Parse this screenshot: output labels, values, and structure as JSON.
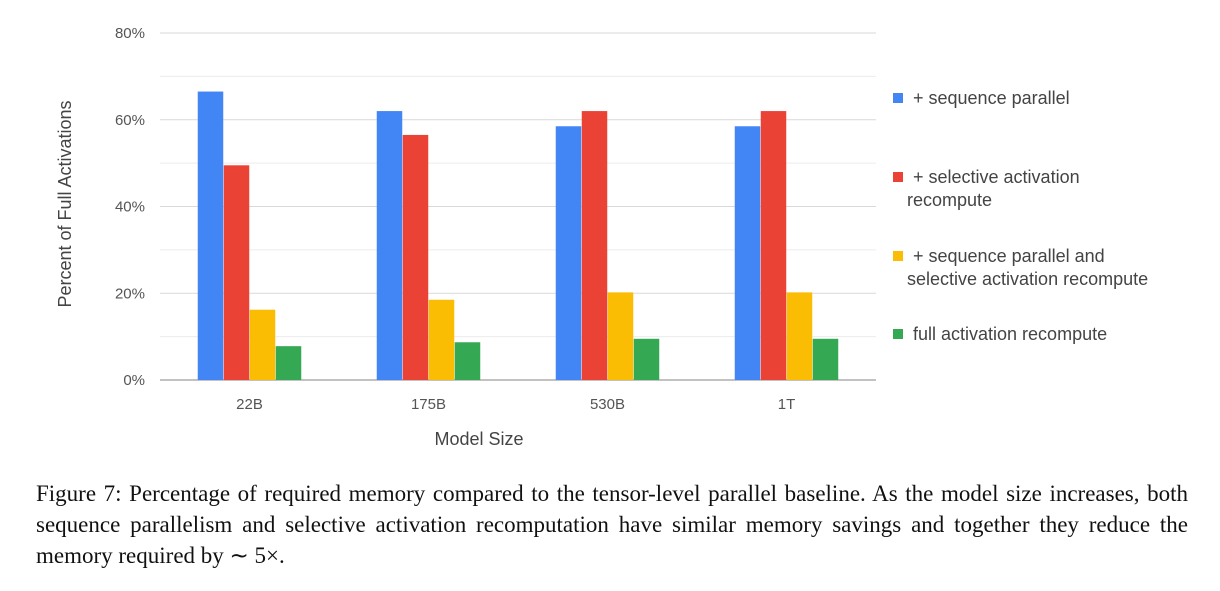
{
  "chart_data": {
    "type": "bar",
    "categories": [
      "22B",
      "175B",
      "530B",
      "1T"
    ],
    "series": [
      {
        "name": "+ sequence parallel",
        "color": "#4285F4",
        "values": [
          66.5,
          62,
          58.5,
          58.5
        ]
      },
      {
        "name": "+ selective activation recompute",
        "color": "#EA4335",
        "values": [
          49.5,
          56.5,
          62,
          62
        ]
      },
      {
        "name": "+ sequence parallel and selective activation recompute",
        "color": "#FBBC04",
        "values": [
          16.2,
          18.5,
          20.2,
          20.2
        ]
      },
      {
        "name": "full activation recompute",
        "color": "#34A853",
        "values": [
          7.8,
          8.7,
          9.5,
          9.5
        ]
      }
    ],
    "legend_lines": [
      [
        "+ sequence parallel"
      ],
      [
        "+ selective activation",
        "recompute"
      ],
      [
        "+ sequence parallel and",
        "selective activation recompute"
      ],
      [
        "full activation recompute"
      ]
    ],
    "xlabel": "Model Size",
    "ylabel": "Percent of Full Activations",
    "ylim": [
      0,
      80
    ],
    "yticks": [
      0,
      20,
      40,
      60,
      80
    ],
    "ytick_labels": [
      "0%",
      "20%",
      "40%",
      "60%",
      "80%"
    ],
    "grid": true,
    "legend_position": "right"
  },
  "caption": "Figure 7: Percentage of required memory compared to the tensor-level parallel baseline. As the model size increases, both sequence parallelism and selective activation recomputation have similar memory savings and together they reduce the memory required by ∼ 5×."
}
